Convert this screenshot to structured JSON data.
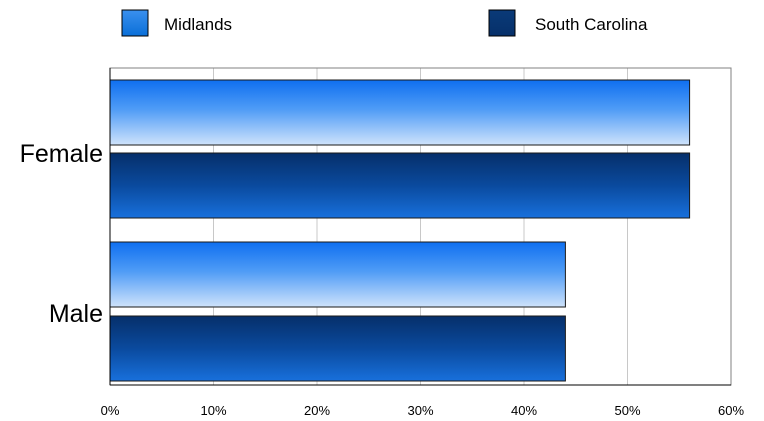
{
  "chart_data": {
    "type": "bar",
    "orientation": "horizontal",
    "categories": [
      "Female",
      "Male"
    ],
    "series": [
      {
        "name": "Midlands",
        "values": [
          56,
          44
        ],
        "color": "#1a7cf0"
      },
      {
        "name": "South Carolina",
        "values": [
          56,
          44
        ],
        "color": "#0a3d87"
      }
    ],
    "xlim": [
      0,
      60
    ],
    "x_ticks": [
      "0%",
      "10%",
      "20%",
      "30%",
      "40%",
      "50%",
      "60%"
    ],
    "grid": "vertical",
    "legend_position": "top",
    "title": "",
    "xlabel": "",
    "ylabel": ""
  }
}
